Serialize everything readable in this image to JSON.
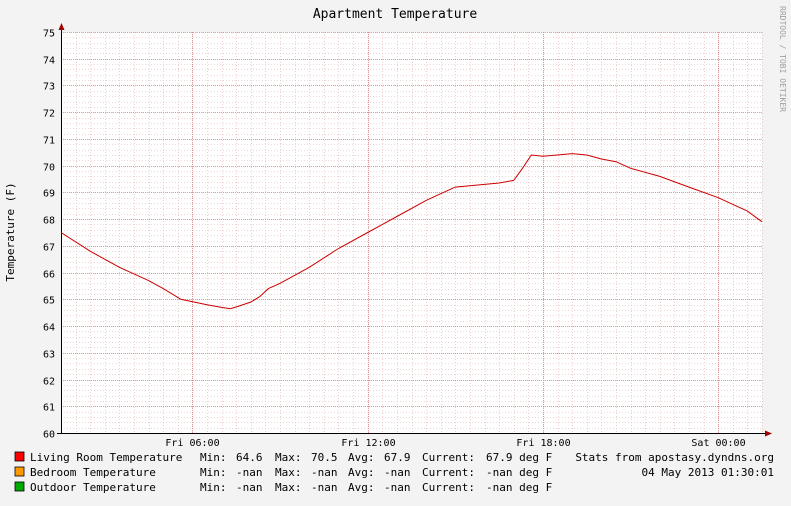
{
  "chart_data": {
    "type": "line",
    "title": "Apartment Temperature",
    "ylabel": "Temperature (F)",
    "xlabel": "",
    "watermark": "RRDTOOL / TOBI OETIKER",
    "ylim": [
      60,
      75
    ],
    "y_ticks": [
      60,
      61,
      62,
      63,
      64,
      65,
      66,
      67,
      68,
      69,
      70,
      71,
      72,
      73,
      74,
      75
    ],
    "x_range_hours": [
      1.5,
      25.5
    ],
    "x_ticks": [
      {
        "label": "Fri 06:00",
        "hour": 6
      },
      {
        "label": "Fri 12:00",
        "hour": 12
      },
      {
        "label": "Fri 18:00",
        "hour": 18
      },
      {
        "label": "Sat 00:00",
        "hour": 24
      }
    ],
    "grid": true,
    "colors": {
      "background": "#f3f3f3",
      "plot_area": "#ffffff",
      "grid_major": "#e08080",
      "grid_minor": "#e0b0b0",
      "axis": "#000000",
      "watermark": "#a0a0a0"
    },
    "series": [
      {
        "name": "Living Room Temperature",
        "color": "#ff0000",
        "line_color": "#cc0000",
        "stats": {
          "min": "64.6",
          "max": "70.5",
          "avg": "67.9",
          "current": "67.9 deg F"
        },
        "x_hours": [
          1.5,
          2.5,
          3.5,
          4.5,
          5.0,
          5.6,
          6.5,
          7.0,
          7.3,
          7.6,
          8.0,
          8.3,
          8.6,
          9.0,
          10.0,
          11.0,
          12.0,
          13.0,
          14.0,
          14.5,
          15.0,
          16.0,
          16.5,
          17.0,
          17.3,
          17.6,
          18.0,
          18.5,
          19.0,
          19.5,
          20.0,
          20.5,
          21.0,
          22.0,
          23.0,
          24.0,
          25.0,
          25.5
        ],
        "values": [
          67.5,
          66.8,
          66.2,
          65.7,
          65.4,
          65.0,
          64.8,
          64.7,
          64.65,
          64.75,
          64.9,
          65.1,
          65.4,
          65.6,
          66.2,
          66.9,
          67.5,
          68.1,
          68.7,
          68.95,
          69.2,
          69.3,
          69.35,
          69.45,
          69.9,
          70.4,
          70.35,
          70.4,
          70.45,
          70.4,
          70.25,
          70.15,
          69.9,
          69.6,
          69.2,
          68.8,
          68.3,
          67.9
        ]
      },
      {
        "name": "Bedroom Temperature",
        "color": "#ff9900",
        "stats": {
          "min": "-nan",
          "max": "-nan",
          "avg": "-nan",
          "current": "-nan deg F"
        },
        "values": []
      },
      {
        "name": "Outdoor Temperature",
        "color": "#00aa00",
        "stats": {
          "min": "-nan",
          "max": "-nan",
          "avg": "-nan",
          "current": "-nan deg F"
        },
        "values": []
      }
    ],
    "stats_labels": {
      "min": "Min:",
      "max": "Max:",
      "avg": "Avg:",
      "current": "Current:"
    },
    "footer_source": "Stats from apostasy.dyndns.org",
    "footer_date": "04 May 2013 01:30:01"
  }
}
